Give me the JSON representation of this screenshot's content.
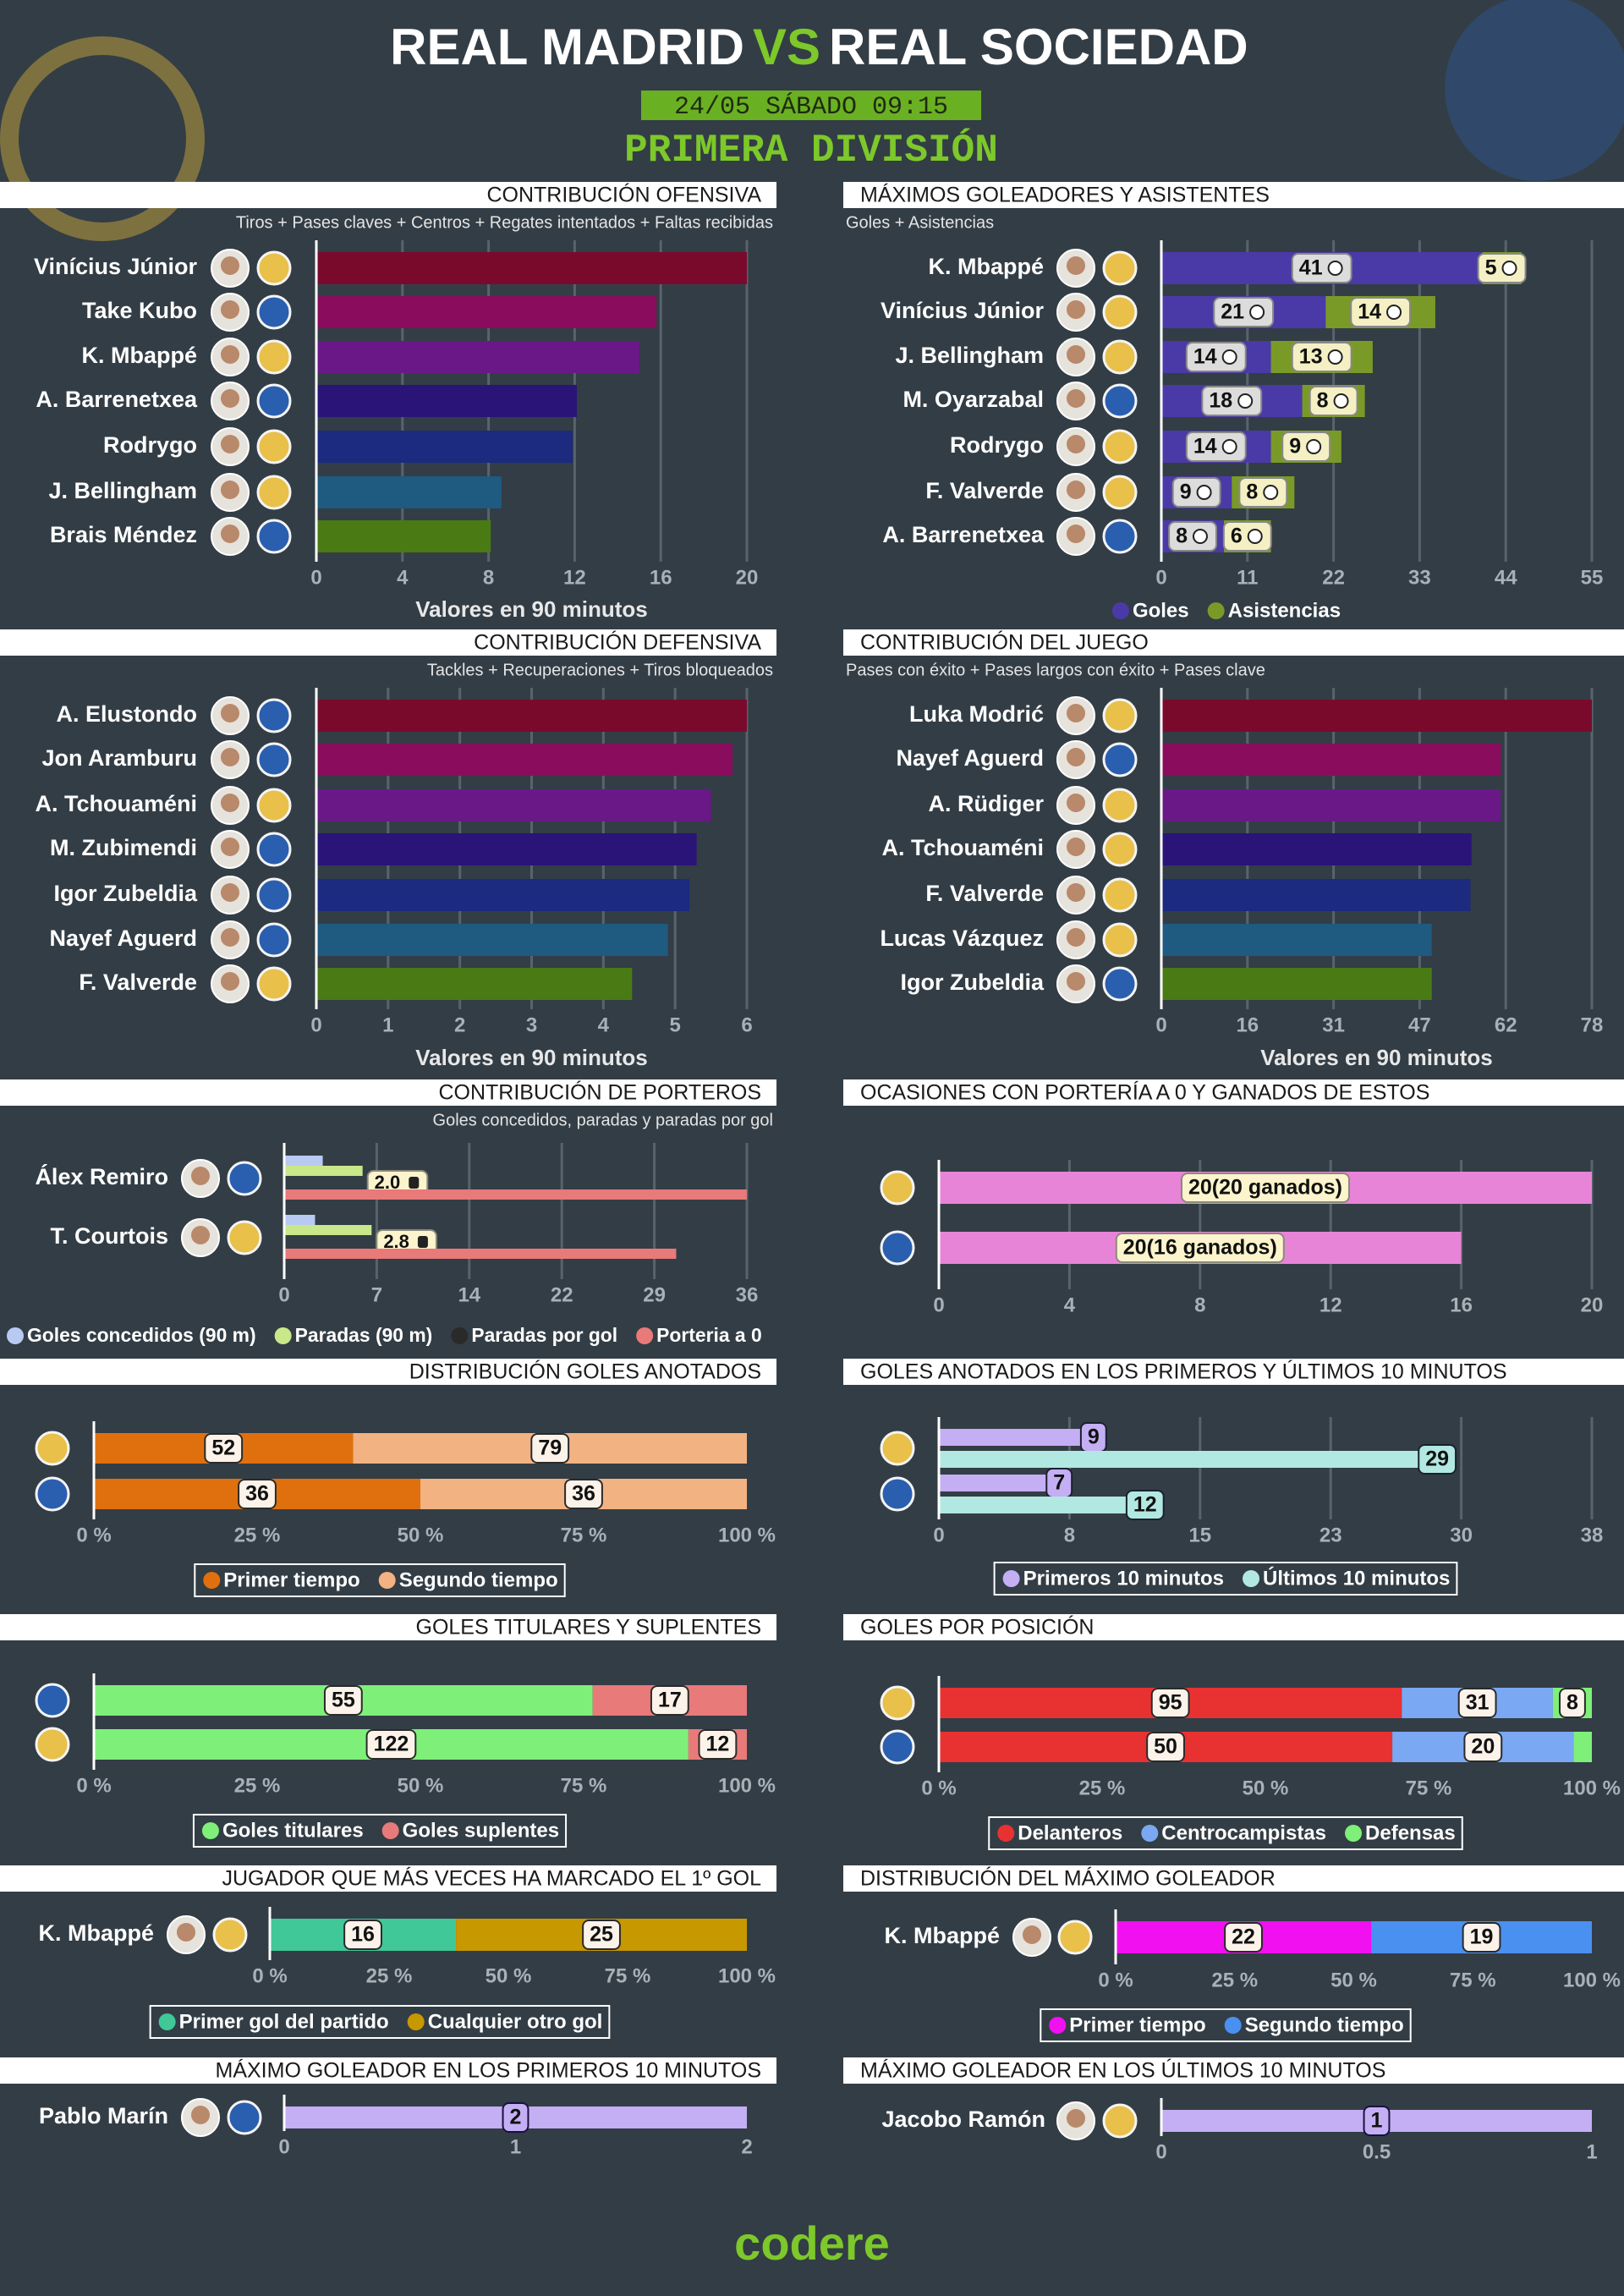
{
  "header": {
    "team_home": "REAL MADRID",
    "vs": "VS",
    "team_away": "REAL SOCIEDAD",
    "date": "24/05 SÁBADO 09:15",
    "competition": "PRIMERA DIVISIÓN"
  },
  "chart_data": [
    {
      "type": "bar",
      "title": "CONTRIBUCIÓN OFENSIVA",
      "subtitle": "Tiros + Pases claves + Centros + Regates intentados + Faltas recibidas",
      "x_label": "Valores en 90 minutos",
      "categories": [
        "Vinícius Júnior",
        "Take Kubo",
        "K. Mbappé",
        "A. Barrenetxea",
        "Rodrygo",
        "J. Bellingham",
        "Brais Méndez"
      ],
      "values": [
        20,
        15.8,
        15,
        12.1,
        11.9,
        8.6,
        8.1
      ],
      "colors": [
        "#7a0a2c",
        "#8a0c5c",
        "#6a1888",
        "#2a1478",
        "#1c2a80",
        "#1f5a80",
        "#4a7a14"
      ],
      "badge_colors": [
        "#e8c04a",
        "#2a5fb0",
        "#e8c04a",
        "#2a5fb0",
        "#e8c04a",
        "#e8c04a",
        "#2a5fb0"
      ],
      "xlim": [
        0,
        20
      ],
      "xticks": [
        0,
        4,
        8,
        12,
        16,
        20
      ],
      "grid": true
    },
    {
      "type": "stacked",
      "title": "MÁXIMOS GOLEADORES Y ASISTENTES",
      "subtitle": "Goles + Asistencias",
      "categories": [
        "K. Mbappé",
        "Vinícius Júnior",
        "J. Bellingham",
        "M. Oyarzabal",
        "Rodrygo",
        "F. Valverde",
        "A. Barrenetxea"
      ],
      "series": [
        {
          "name": "Goles",
          "color": "#4a3aa8",
          "values": [
            41,
            21,
            14,
            18,
            14,
            9,
            8
          ]
        },
        {
          "name": "Asistencias",
          "color": "#7a9a28",
          "values": [
            5,
            14,
            13,
            8,
            9,
            8,
            6
          ]
        }
      ],
      "badge_colors": [
        "#e8c04a",
        "#e8c04a",
        "#e8c04a",
        "#2a5fb0",
        "#e8c04a",
        "#e8c04a",
        "#2a5fb0"
      ],
      "xlim": [
        0,
        55
      ],
      "xticks": [
        0,
        11,
        22,
        33,
        44,
        55
      ],
      "grid": true
    },
    {
      "type": "bar",
      "title": "CONTRIBUCIÓN DEFENSIVA",
      "subtitle": "Tackles + Recuperaciones + Tiros bloqueados",
      "x_label": "Valores en 90 minutos",
      "categories": [
        "A. Elustondo",
        "Jon Aramburu",
        "A. Tchouaméni",
        "M. Zubimendi",
        "Igor Zubeldia",
        "Nayef Aguerd",
        "F. Valverde"
      ],
      "values": [
        6.0,
        5.8,
        5.5,
        5.3,
        5.2,
        4.9,
        4.4
      ],
      "colors": [
        "#7a0a2c",
        "#8a0c5c",
        "#6a1888",
        "#2a1478",
        "#1c2a80",
        "#1f5a80",
        "#4a7a14"
      ],
      "badge_colors": [
        "#2a5fb0",
        "#2a5fb0",
        "#e8c04a",
        "#2a5fb0",
        "#2a5fb0",
        "#2a5fb0",
        "#e8c04a"
      ],
      "xlim": [
        0,
        6
      ],
      "xticks": [
        0,
        1,
        2,
        3,
        4,
        5,
        6
      ],
      "grid": true
    },
    {
      "type": "bar",
      "title": "CONTRIBUCIÓN DEL JUEGO",
      "subtitle": "Pases con éxito + Pases largos con éxito + Pases clave",
      "x_label": "Valores en 90 minutos",
      "categories": [
        "Luka Modrić",
        "Nayef Aguerd",
        "A. Rüdiger",
        "A. Tchouaméni",
        "F. Valverde",
        "Lucas Vázquez",
        "Igor Zubeldia"
      ],
      "values": [
        78,
        61.5,
        61.5,
        56.2,
        56,
        49,
        49
      ],
      "colors": [
        "#7a0a2c",
        "#8a0c5c",
        "#6a1888",
        "#2a1478",
        "#1c2a80",
        "#1f5a80",
        "#4a7a14"
      ],
      "badge_colors": [
        "#e8c04a",
        "#2a5fb0",
        "#e8c04a",
        "#e8c04a",
        "#e8c04a",
        "#e8c04a",
        "#2a5fb0"
      ],
      "xlim": [
        0,
        78
      ],
      "xticks": [
        0,
        {
          "value": 15.6,
          "label": "16"
        },
        {
          "value": 31.2,
          "label": "31"
        },
        {
          "value": 46.8,
          "label": "47"
        },
        {
          "value": 62.4,
          "label": "62"
        },
        78
      ],
      "grid": true
    },
    {
      "type": "grouped",
      "title": "CONTRIBUCIÓN DE PORTEROS",
      "subtitle": "Goles concedidos, paradas y paradas por gol",
      "categories": [
        "Álex Remiro",
        "T. Courtois"
      ],
      "series": [
        {
          "name": "Goles concedidos (90 m)",
          "color": "#b8caf2",
          "values": [
            3.0,
            2.4
          ]
        },
        {
          "name": "Paradas (90 m)",
          "color": "#c8e88a",
          "values": [
            6.1,
            6.8
          ]
        },
        {
          "name": "Paradas por gol",
          "color": "#2a2a2a",
          "values": [
            2.0,
            2.8
          ],
          "value_labels": [
            "2.0",
            "2.8"
          ]
        },
        {
          "name": "Porteria a 0",
          "color": "#e87a7a",
          "values": [
            36,
            30.5
          ]
        }
      ],
      "badge_colors": [
        "#2a5fb0",
        "#e8c04a"
      ],
      "xlim": [
        0,
        36
      ],
      "xticks": [
        0,
        {
          "value": 7.2,
          "label": "7"
        },
        {
          "value": 14.4,
          "label": "14"
        },
        {
          "value": 21.6,
          "label": "22"
        },
        {
          "value": 28.8,
          "label": "29"
        },
        36
      ],
      "grid": true
    },
    {
      "type": "bar",
      "title": "OCASIONES CON PORTERÍA A 0 Y GANADOS DE ESTOS",
      "categories": [
        null,
        null
      ],
      "values": [
        20,
        16
      ],
      "value_labels": [
        "20(20 ganados)",
        "20(16 ganados)"
      ],
      "color": "#e884d8",
      "badge_colors": [
        "#e8c04a",
        "#2a5fb0"
      ],
      "xlim": [
        0,
        20
      ],
      "xticks": [
        0,
        4,
        8,
        12,
        16,
        20
      ],
      "grid": true
    },
    {
      "type": "percent",
      "title": "DISTRIBUCIÓN GOLES ANOTADOS",
      "categories": [
        null,
        null
      ],
      "series": [
        {
          "name": "Primer tiempo",
          "color": "#e0700e",
          "values": [
            52,
            36
          ]
        },
        {
          "name": "Segundo tiempo",
          "color": "#f2b282",
          "values": [
            79,
            36
          ]
        }
      ],
      "badge_colors": [
        "#e8c04a",
        "#2a5fb0"
      ],
      "xlim": [
        0,
        100
      ],
      "xticks": [
        {
          "value": 0,
          "label": "0 %"
        },
        {
          "value": 25,
          "label": "25 %"
        },
        {
          "value": 50,
          "label": "50 %"
        },
        {
          "value": 75,
          "label": "75 %"
        },
        {
          "value": 100,
          "label": "100 %"
        }
      ],
      "grid": false
    },
    {
      "type": "grouped",
      "title": "GOLES ANOTADOS EN LOS PRIMEROS Y ÚLTIMOS 10 MINUTOS",
      "categories": [
        null,
        null
      ],
      "series": [
        {
          "name": "Primeros 10 minutos",
          "color": "#c4aef4",
          "values": [
            9,
            7
          ]
        },
        {
          "name": "Últimos 10 minutos",
          "color": "#b2e8e2",
          "values": [
            29,
            12
          ]
        }
      ],
      "badge_colors": [
        "#e8c04a",
        "#2a5fb0"
      ],
      "data_labels": true,
      "xlim": [
        0,
        38
      ],
      "xticks": [
        0,
        {
          "value": 7.6,
          "label": "8"
        },
        {
          "value": 15.2,
          "label": "15"
        },
        {
          "value": 22.8,
          "label": "23"
        },
        {
          "value": 30.4,
          "label": "30"
        },
        38
      ],
      "grid": true
    },
    {
      "type": "percent",
      "title": "GOLES TITULARES Y SUPLENTES",
      "categories": [
        null,
        null
      ],
      "series": [
        {
          "name": "Goles titulares",
          "color": "#7ef07a",
          "values": [
            55,
            122
          ]
        },
        {
          "name": "Goles suplentes",
          "color": "#e87a7a",
          "values": [
            17,
            12
          ]
        }
      ],
      "badge_colors": [
        "#2a5fb0",
        "#e8c04a"
      ],
      "xlim": [
        0,
        100
      ],
      "xticks": [
        {
          "value": 0,
          "label": "0 %"
        },
        {
          "value": 25,
          "label": "25 %"
        },
        {
          "value": 50,
          "label": "50 %"
        },
        {
          "value": 75,
          "label": "75 %"
        },
        {
          "value": 100,
          "label": "100 %"
        }
      ],
      "grid": false
    },
    {
      "type": "percent",
      "title": "GOLES POR POSICIÓN",
      "categories": [
        null,
        null
      ],
      "series": [
        {
          "name": "Delanteros",
          "color": "#e83232",
          "values": [
            95,
            50
          ]
        },
        {
          "name": "Centrocampistas",
          "color": "#7aa8f2",
          "values": [
            31,
            20
          ]
        },
        {
          "name": "Defensas",
          "color": "#7ef07a",
          "values": [
            8,
            2
          ]
        }
      ],
      "badge_colors": [
        "#e8c04a",
        "#2a5fb0"
      ],
      "xlim": [
        0,
        100
      ],
      "xticks": [
        {
          "value": 0,
          "label": "0 %"
        },
        {
          "value": 25,
          "label": "25 %"
        },
        {
          "value": 50,
          "label": "50 %"
        },
        {
          "value": 75,
          "label": "75 %"
        },
        {
          "value": 100,
          "label": "100 %"
        }
      ],
      "grid": false
    },
    {
      "type": "percent",
      "title": "JUGADOR QUE MÁS VECES HA MARCADO EL 1º GOL",
      "categories": [
        "K. Mbappé"
      ],
      "series": [
        {
          "name": "Primer gol del partido",
          "color": "#40c898",
          "values": [
            16
          ]
        },
        {
          "name": "Cualquier otro gol",
          "color": "#c89800",
          "values": [
            25
          ]
        }
      ],
      "badge_colors": [
        "#e8c04a"
      ],
      "xlim": [
        0,
        100
      ],
      "xticks": [
        {
          "value": 0,
          "label": "0 %"
        },
        {
          "value": 25,
          "label": "25 %"
        },
        {
          "value": 50,
          "label": "50 %"
        },
        {
          "value": 75,
          "label": "75 %"
        },
        {
          "value": 100,
          "label": "100 %"
        }
      ],
      "grid": false
    },
    {
      "type": "percent",
      "title": "DISTRIBUCIÓN DEL MÁXIMO GOLEADOR",
      "categories": [
        "K. Mbappé"
      ],
      "series": [
        {
          "name": "Primer tiempo",
          "color": "#f010f0",
          "values": [
            22
          ]
        },
        {
          "name": "Segundo tiempo",
          "color": "#4a90f0",
          "values": [
            19
          ]
        }
      ],
      "badge_colors": [
        "#e8c04a"
      ],
      "xlim": [
        0,
        100
      ],
      "xticks": [
        {
          "value": 0,
          "label": "0 %"
        },
        {
          "value": 25,
          "label": "25 %"
        },
        {
          "value": 50,
          "label": "50 %"
        },
        {
          "value": 75,
          "label": "75 %"
        },
        {
          "value": 100,
          "label": "100 %"
        }
      ],
      "grid": false
    },
    {
      "type": "bar",
      "title": "MÁXIMO GOLEADOR EN LOS PRIMEROS 10 MINUTOS",
      "categories": [
        "Pablo Marín"
      ],
      "values": [
        2
      ],
      "color": "#c4aef4",
      "data_labels": true,
      "badge_colors": [
        "#2a5fb0"
      ],
      "xlim": [
        0,
        2
      ],
      "xticks": [
        0,
        1,
        2
      ],
      "grid": false
    },
    {
      "type": "bar",
      "title": "MÁXIMO GOLEADOR EN LOS ÚLTIMOS 10 MINUTOS",
      "categories": [
        "Jacobo Ramón"
      ],
      "values": [
        1
      ],
      "color": "#c4aef4",
      "data_labels": true,
      "badge_colors": [
        "#e8c04a"
      ],
      "xlim": [
        0,
        1
      ],
      "xticks": [
        0,
        0.5,
        1
      ],
      "grid": false
    }
  ],
  "footer": {
    "brand": "codere"
  }
}
